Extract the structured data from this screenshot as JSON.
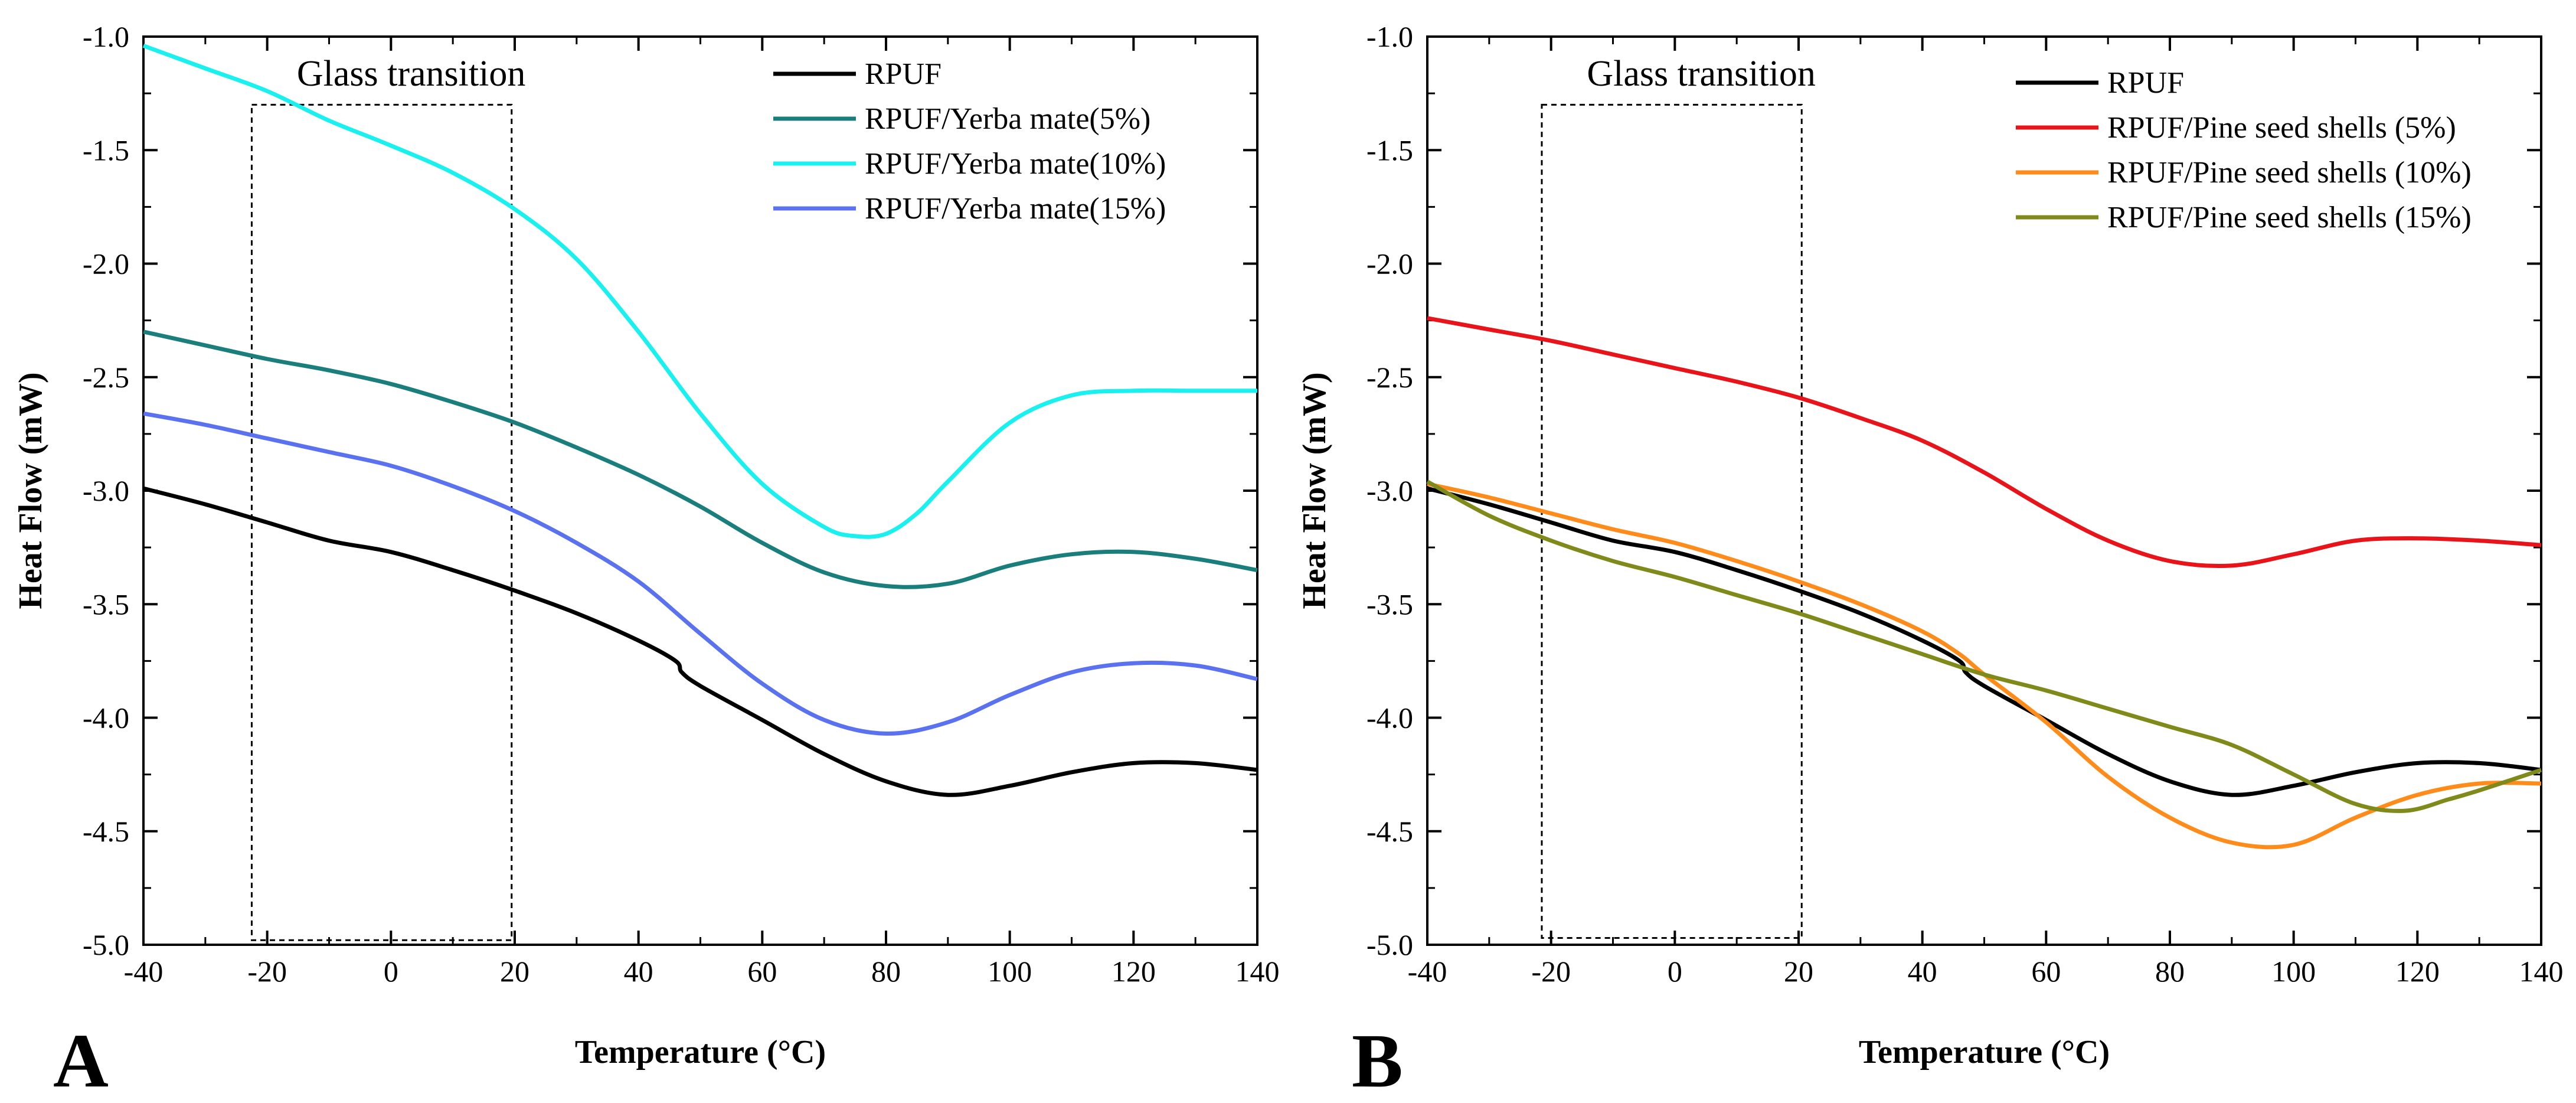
{
  "chart_data": [
    {
      "type": "line",
      "panel_label": "A",
      "xlabel": "Temperature (°C)",
      "ylabel": "Heat Flow (mW)",
      "xlim": [
        -40,
        140
      ],
      "ylim": [
        -5.0,
        -1.0
      ],
      "xticks": [
        -40,
        -20,
        0,
        20,
        40,
        60,
        80,
        100,
        120,
        140
      ],
      "xtick_labels": [
        "-40",
        "-20",
        "0",
        "20",
        "40",
        "60",
        "80",
        "100",
        "120",
        "140"
      ],
      "yticks": [
        -5.0,
        -4.5,
        -4.0,
        -3.5,
        -3.0,
        -2.5,
        -2.0,
        -1.5,
        -1.0
      ],
      "ytick_labels": [
        "-5.0",
        "-4.5",
        "-4.0",
        "-3.5",
        "-3.0",
        "-2.5",
        "-2.0",
        "-1.5",
        "-1.0"
      ],
      "annotation": {
        "text": "Glass transition",
        "x_range": [
          -22.5,
          19.5
        ],
        "y_range": [
          -4.98,
          -1.3
        ]
      },
      "legend_position": "top-right",
      "series": [
        {
          "name": "RPUF",
          "color": "#000000",
          "x": [
            -40,
            -30,
            -20,
            -10,
            0,
            10,
            20,
            30,
            40,
            46,
            47,
            50,
            60,
            70,
            80,
            90,
            100,
            110,
            120,
            130,
            140
          ],
          "y": [
            -2.99,
            -3.06,
            -3.14,
            -3.22,
            -3.27,
            -3.35,
            -3.44,
            -3.54,
            -3.66,
            -3.75,
            -3.8,
            -3.86,
            -4.01,
            -4.16,
            -4.28,
            -4.34,
            -4.3,
            -4.24,
            -4.2,
            -4.2,
            -4.23
          ]
        },
        {
          "name": "RPUF/Yerba mate(5%)",
          "color": "#1a7f7c",
          "x": [
            -40,
            -30,
            -20,
            -10,
            0,
            10,
            20,
            30,
            40,
            50,
            60,
            70,
            80,
            90,
            100,
            110,
            120,
            130,
            140
          ],
          "y": [
            -2.3,
            -2.36,
            -2.42,
            -2.47,
            -2.53,
            -2.61,
            -2.7,
            -2.81,
            -2.93,
            -3.07,
            -3.23,
            -3.36,
            -3.42,
            -3.41,
            -3.33,
            -3.28,
            -3.27,
            -3.3,
            -3.35
          ]
        },
        {
          "name": "RPUF/Yerba mate(10%)",
          "color": "#19f0f0",
          "x": [
            -40,
            -30,
            -20,
            -10,
            0,
            10,
            20,
            30,
            40,
            50,
            60,
            70,
            75,
            80,
            85,
            90,
            100,
            110,
            120,
            130,
            140
          ],
          "y": [
            -1.04,
            -1.14,
            -1.24,
            -1.37,
            -1.48,
            -1.6,
            -1.76,
            -1.98,
            -2.3,
            -2.66,
            -2.97,
            -3.16,
            -3.2,
            -3.19,
            -3.1,
            -2.96,
            -2.7,
            -2.58,
            -2.56,
            -2.56,
            -2.56
          ]
        },
        {
          "name": "RPUF/Yerba mate(15%)",
          "color": "#5a72ef",
          "x": [
            -40,
            -30,
            -20,
            -10,
            0,
            10,
            20,
            30,
            40,
            50,
            60,
            70,
            80,
            90,
            100,
            110,
            120,
            130,
            140
          ],
          "y": [
            -2.66,
            -2.71,
            -2.77,
            -2.83,
            -2.89,
            -2.98,
            -3.09,
            -3.23,
            -3.4,
            -3.63,
            -3.85,
            -4.01,
            -4.07,
            -4.02,
            -3.9,
            -3.8,
            -3.76,
            -3.77,
            -3.83
          ]
        }
      ]
    },
    {
      "type": "line",
      "panel_label": "B",
      "xlabel": "Temperature (°C)",
      "ylabel": "Heat Flow (mW)",
      "xlim": [
        -40,
        140
      ],
      "ylim": [
        -5.0,
        -1.0
      ],
      "xticks": [
        -40,
        -20,
        0,
        20,
        40,
        60,
        80,
        100,
        120,
        140
      ],
      "xtick_labels": [
        "-40",
        "-20",
        "0",
        "20",
        "40",
        "60",
        "80",
        "100",
        "120",
        "140"
      ],
      "yticks": [
        -5.0,
        -4.5,
        -4.0,
        -3.5,
        -3.0,
        -2.5,
        -2.0,
        -1.5,
        -1.0
      ],
      "ytick_labels": [
        "-5.0",
        "-4.5",
        "-4.0",
        "-3.5",
        "-3.0",
        "-2.5",
        "-2.0",
        "-1.5",
        "-1.0"
      ],
      "annotation": {
        "text": "Glass transition",
        "x_range": [
          -21.5,
          20.5
        ],
        "y_range": [
          -4.97,
          -1.3
        ]
      },
      "legend_position": "top-right",
      "series": [
        {
          "name": "RPUF",
          "color": "#000000",
          "x": [
            -40,
            -30,
            -20,
            -10,
            0,
            10,
            20,
            30,
            40,
            46,
            47,
            50,
            60,
            70,
            80,
            90,
            100,
            110,
            120,
            130,
            140
          ],
          "y": [
            -2.99,
            -3.06,
            -3.14,
            -3.22,
            -3.27,
            -3.35,
            -3.44,
            -3.54,
            -3.66,
            -3.75,
            -3.8,
            -3.86,
            -4.01,
            -4.16,
            -4.28,
            -4.34,
            -4.3,
            -4.24,
            -4.2,
            -4.2,
            -4.23
          ]
        },
        {
          "name": "RPUF/Pine seed shells (5%)",
          "color": "#e8141a",
          "x": [
            -40,
            -30,
            -20,
            -10,
            0,
            10,
            20,
            30,
            40,
            50,
            60,
            70,
            80,
            90,
            100,
            110,
            120,
            130,
            140
          ],
          "y": [
            -2.24,
            -2.29,
            -2.34,
            -2.4,
            -2.46,
            -2.52,
            -2.59,
            -2.68,
            -2.78,
            -2.92,
            -3.08,
            -3.22,
            -3.31,
            -3.33,
            -3.28,
            -3.22,
            -3.21,
            -3.22,
            -3.24
          ]
        },
        {
          "name": "RPUF/Pine seed shells (10%)",
          "color": "#ff8c1a",
          "x": [
            -40,
            -30,
            -20,
            -10,
            0,
            10,
            20,
            30,
            40,
            46,
            50,
            60,
            70,
            80,
            90,
            100,
            110,
            120,
            130,
            140
          ],
          "y": [
            -2.97,
            -3.03,
            -3.1,
            -3.17,
            -3.23,
            -3.31,
            -3.4,
            -3.5,
            -3.62,
            -3.72,
            -3.81,
            -4.02,
            -4.26,
            -4.44,
            -4.55,
            -4.56,
            -4.44,
            -4.34,
            -4.29,
            -4.29
          ]
        },
        {
          "name": "RPUF/Pine seed shells (15%)",
          "color": "#7f8a1a",
          "x": [
            -40,
            -30,
            -20,
            -10,
            0,
            10,
            20,
            30,
            40,
            50,
            60,
            70,
            80,
            90,
            100,
            110,
            118,
            125,
            130,
            140
          ],
          "y": [
            -2.96,
            -3.11,
            -3.22,
            -3.31,
            -3.38,
            -3.46,
            -3.54,
            -3.63,
            -3.72,
            -3.81,
            -3.88,
            -3.96,
            -4.04,
            -4.12,
            -4.25,
            -4.38,
            -4.41,
            -4.36,
            -4.32,
            -4.23
          ]
        }
      ]
    }
  ]
}
